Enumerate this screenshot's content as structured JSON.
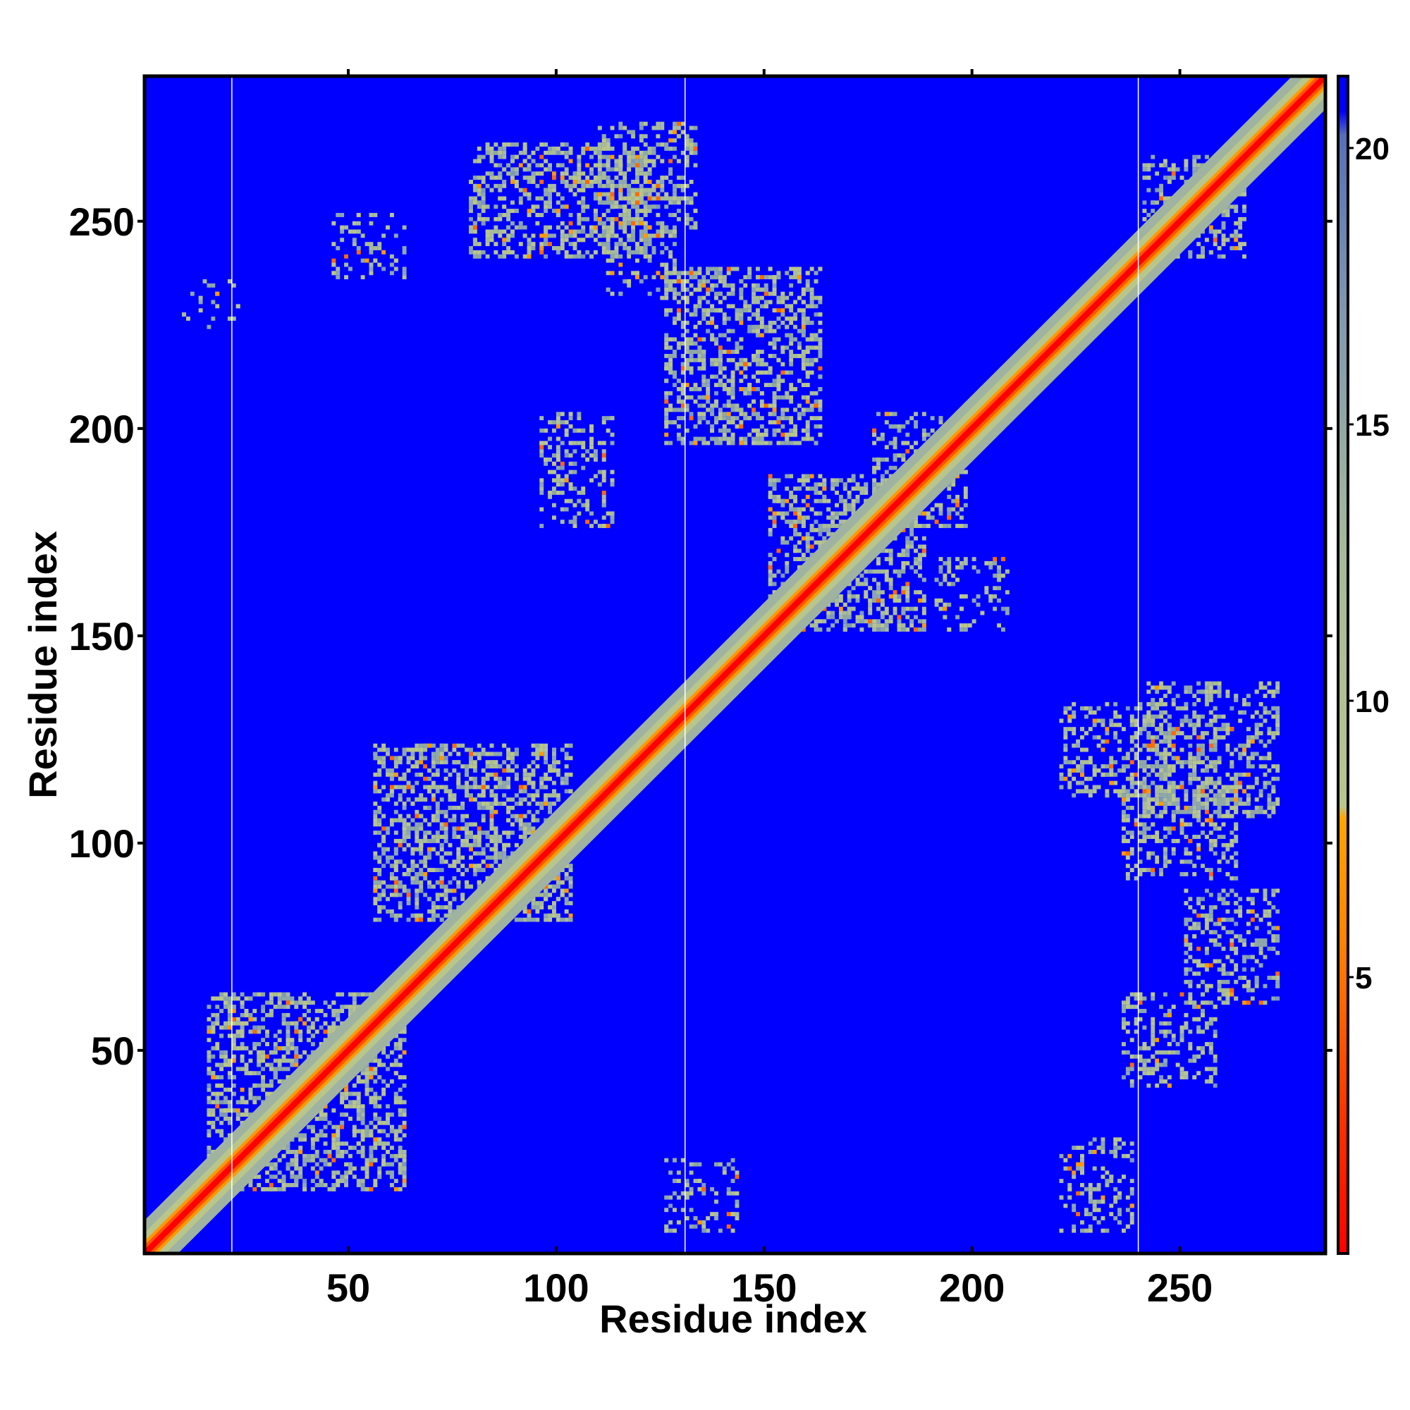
{
  "chart_data": {
    "type": "heatmap",
    "title": "",
    "xlabel": "Residue index",
    "ylabel": "Residue index",
    "xlim": [
      1,
      285
    ],
    "ylim": [
      1,
      285
    ],
    "x_ticks": [
      50,
      100,
      150,
      200,
      250
    ],
    "y_ticks": [
      50,
      100,
      150,
      200,
      250
    ],
    "x_tick_labels": [
      "50",
      "100",
      "150",
      "200",
      "250"
    ],
    "y_tick_labels": [
      "50",
      "100",
      "150",
      "200",
      "250"
    ],
    "colorbar": {
      "range": [
        0,
        21.3
      ],
      "ticks": [
        5,
        10,
        15,
        20
      ],
      "tick_labels": [
        "5",
        "10",
        "15",
        "20"
      ],
      "colors": [
        "#ff0000",
        "#ff6600",
        "#ff9900",
        "#b7c48a",
        "#9fb3a0",
        "#6f8bb0",
        "#0000ff"
      ]
    },
    "background_color": "#0000ff",
    "domain_boundaries_x": [
      22,
      131,
      240
    ],
    "diagonal_band": true,
    "contact_regions": [
      {
        "x": [
          245,
          262
        ],
        "y": [
          245,
          262
        ],
        "note": "diagonal helix/strand region"
      },
      {
        "x": [
          113,
          130
        ],
        "y": [
          250,
          270
        ]
      },
      {
        "x": [
          115,
          125
        ],
        "y": [
          235,
          245
        ]
      },
      {
        "x": [
          83,
          120
        ],
        "y": [
          245,
          265
        ]
      },
      {
        "x": [
          50,
          60
        ],
        "y": [
          240,
          248
        ]
      },
      {
        "x": [
          14,
          20
        ],
        "y": [
          228,
          232
        ]
      },
      {
        "x": [
          130,
          160
        ],
        "y": [
          200,
          235
        ]
      },
      {
        "x": [
          155,
          185
        ],
        "y": [
          155,
          185
        ],
        "note": "X-shaped antiparallel contact"
      },
      {
        "x": [
          180,
          195
        ],
        "y": [
          180,
          200
        ]
      },
      {
        "x": [
          195,
          205
        ],
        "y": [
          155,
          165
        ]
      },
      {
        "x": [
          245,
          270
        ],
        "y": [
          110,
          135
        ]
      },
      {
        "x": [
          225,
          245
        ],
        "y": [
          115,
          130
        ]
      },
      {
        "x": [
          240,
          260
        ],
        "y": [
          95,
          110
        ]
      },
      {
        "x": [
          255,
          270
        ],
        "y": [
          65,
          85
        ]
      },
      {
        "x": [
          240,
          255
        ],
        "y": [
          45,
          60
        ]
      },
      {
        "x": [
          225,
          235
        ],
        "y": [
          10,
          25
        ]
      },
      {
        "x": [
          20,
          60
        ],
        "y": [
          20,
          60
        ]
      },
      {
        "x": [
          60,
          100
        ],
        "y": [
          85,
          120
        ]
      },
      {
        "x": [
          100,
          110
        ],
        "y": [
          180,
          200
        ]
      },
      {
        "x": [
          85,
          100
        ],
        "y": [
          90,
          100
        ]
      },
      {
        "x": [
          130,
          140
        ],
        "y": [
          10,
          20
        ]
      }
    ]
  }
}
